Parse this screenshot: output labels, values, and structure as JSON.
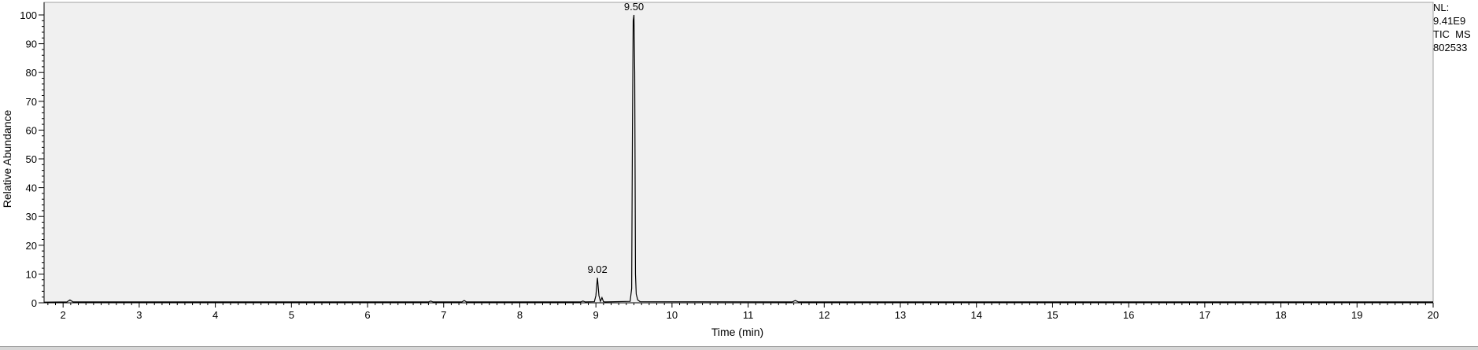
{
  "chart_data": {
    "type": "line",
    "xlabel": "Time (min)",
    "ylabel": "Relative Abundance",
    "xlim": [
      1.75,
      20
    ],
    "ylim": [
      0,
      100
    ],
    "x_ticks": [
      2,
      3,
      4,
      5,
      6,
      7,
      8,
      9,
      10,
      11,
      12,
      13,
      14,
      15,
      16,
      17,
      18,
      19,
      20
    ],
    "y_ticks": [
      0,
      10,
      20,
      30,
      40,
      50,
      60,
      70,
      80,
      90,
      100
    ],
    "grid": false,
    "series": [
      {
        "x": [
          1.75,
          2.05,
          2.09,
          2.13,
          6.8,
          6.83,
          6.86,
          7.24,
          7.27,
          7.3,
          8.8,
          8.83,
          8.86,
          8.98,
          9.0,
          9.02,
          9.04,
          9.06,
          9.08,
          9.1,
          9.12,
          9.45,
          9.47,
          9.48,
          9.49,
          9.5,
          9.51,
          9.52,
          9.53,
          9.55,
          9.58,
          11.58,
          11.62,
          11.66,
          20.0
        ],
        "y": [
          0.2,
          0.3,
          1.0,
          0.3,
          0.3,
          0.6,
          0.3,
          0.3,
          0.8,
          0.3,
          0.3,
          0.6,
          0.3,
          0.4,
          2.5,
          8.7,
          2.5,
          0.5,
          1.8,
          0.4,
          0.3,
          0.5,
          5.0,
          60.0,
          98.0,
          100.0,
          80.0,
          10.0,
          3.0,
          1.0,
          0.4,
          0.3,
          0.8,
          0.3,
          0.3
        ]
      }
    ],
    "annotations": [
      {
        "x": 9.02,
        "y": 8.7,
        "text": "9.02"
      },
      {
        "x": 9.5,
        "y": 100,
        "text": "9.50"
      }
    ]
  },
  "info": {
    "nl_label": "NL:",
    "nl_value": "9.41E9",
    "trace": "TIC  MS",
    "file_id": "802533"
  }
}
